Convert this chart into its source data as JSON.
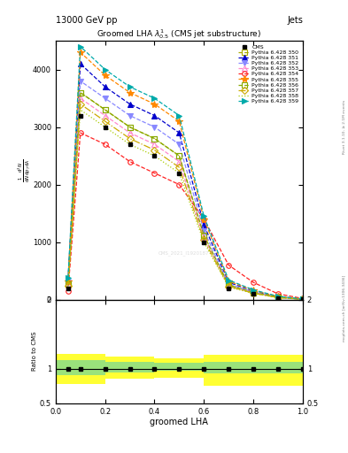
{
  "title_main": "13000 GeV pp",
  "title_right": "Jets",
  "plot_title": "Groomed LHA $\\lambda^{1}_{0.5}$ (CMS jet substructure)",
  "xlabel": "groomed LHA",
  "ylabel_main": "$\\frac{1}{\\mathrm{d}N}\\frac{\\mathrm{d}^2N}{\\mathrm{d}p_T\\,\\mathrm{d}\\lambda}$",
  "ylabel_ratio": "Ratio to CMS",
  "rivet_label": "Rivet 3.1.10, ≥ 2.1M events",
  "arxiv_label": "mcplots.cern.ch [arXiv:1306.3436]",
  "cms_label": "CMS_2021_I1920187",
  "x_data": [
    0.05,
    0.1,
    0.2,
    0.3,
    0.4,
    0.5,
    0.6,
    0.7,
    0.8,
    0.9,
    1.0
  ],
  "cms_data": [
    200,
    3200,
    3000,
    2700,
    2500,
    2200,
    1000,
    200,
    100,
    30,
    5
  ],
  "series": [
    {
      "label": "Pythia 6.428 350",
      "color": "#aaaa00",
      "marker": "s",
      "linestyle": "--",
      "data": [
        250,
        3600,
        3300,
        3000,
        2800,
        2500,
        1100,
        250,
        120,
        40,
        8
      ],
      "fillstyle": "none"
    },
    {
      "label": "Pythia 6.428 351",
      "color": "#0000cc",
      "marker": "^",
      "linestyle": "--",
      "data": [
        350,
        4100,
        3700,
        3400,
        3200,
        2900,
        1300,
        300,
        150,
        50,
        10
      ],
      "fillstyle": "full"
    },
    {
      "label": "Pythia 6.428 352",
      "color": "#8888ff",
      "marker": "v",
      "linestyle": "--",
      "data": [
        300,
        3800,
        3500,
        3200,
        3000,
        2700,
        1200,
        270,
        135,
        45,
        9
      ],
      "fillstyle": "full"
    },
    {
      "label": "Pythia 6.428 353",
      "color": "#ff88cc",
      "marker": "^",
      "linestyle": "--",
      "data": [
        260,
        3500,
        3200,
        2900,
        2700,
        2400,
        1080,
        240,
        118,
        38,
        7
      ],
      "fillstyle": "none"
    },
    {
      "label": "Pythia 6.428 354",
      "color": "#ff2222",
      "marker": "o",
      "linestyle": "--",
      "data": [
        150,
        2900,
        2700,
        2400,
        2200,
        2000,
        1400,
        600,
        300,
        100,
        20
      ],
      "fillstyle": "none"
    },
    {
      "label": "Pythia 6.428 355",
      "color": "#ff8800",
      "marker": "*",
      "linestyle": "--",
      "data": [
        320,
        4300,
        3900,
        3600,
        3400,
        3100,
        1400,
        320,
        160,
        55,
        11
      ],
      "fillstyle": "full"
    },
    {
      "label": "Pythia 6.428 356",
      "color": "#88aa00",
      "marker": "s",
      "linestyle": "--",
      "data": [
        270,
        3600,
        3300,
        3000,
        2800,
        2500,
        1120,
        255,
        125,
        42,
        8
      ],
      "fillstyle": "none"
    },
    {
      "label": "Pythia 6.428 357",
      "color": "#ccaa00",
      "marker": "D",
      "linestyle": "-.",
      "data": [
        240,
        3400,
        3100,
        2800,
        2600,
        2300,
        1040,
        230,
        112,
        36,
        7
      ],
      "fillstyle": "none"
    },
    {
      "label": "Pythia 6.428 358",
      "color": "#aacc00",
      "marker": "None",
      "linestyle": ":",
      "data": [
        220,
        3300,
        3000,
        2700,
        2500,
        2200,
        1000,
        220,
        108,
        34,
        6
      ],
      "fillstyle": "full"
    },
    {
      "label": "Pythia 6.428 359",
      "color": "#00aaaa",
      "marker": ">",
      "linestyle": "--",
      "data": [
        380,
        4400,
        4000,
        3700,
        3500,
        3200,
        1450,
        340,
        170,
        58,
        12
      ],
      "fillstyle": "full"
    }
  ],
  "ylim_main": [
    0,
    4500
  ],
  "ylim_ratio": [
    0.5,
    2.0
  ],
  "xlim": [
    0,
    1.0
  ],
  "ratio_edges": [
    0.0,
    0.1,
    0.2,
    0.3,
    0.4,
    0.5,
    0.6,
    0.65,
    0.7,
    1.0
  ],
  "ratio_green_lo": [
    0.9,
    0.9,
    0.95,
    0.95,
    0.97,
    0.97,
    0.93,
    0.93,
    0.93
  ],
  "ratio_green_hi": [
    1.12,
    1.12,
    1.1,
    1.1,
    1.08,
    1.08,
    1.1,
    1.1,
    1.1
  ],
  "ratio_yellow_lo": [
    0.78,
    0.78,
    0.85,
    0.85,
    0.87,
    0.87,
    0.75,
    0.75,
    0.75
  ],
  "ratio_yellow_hi": [
    1.22,
    1.22,
    1.18,
    1.18,
    1.15,
    1.15,
    1.2,
    1.2,
    1.2
  ]
}
